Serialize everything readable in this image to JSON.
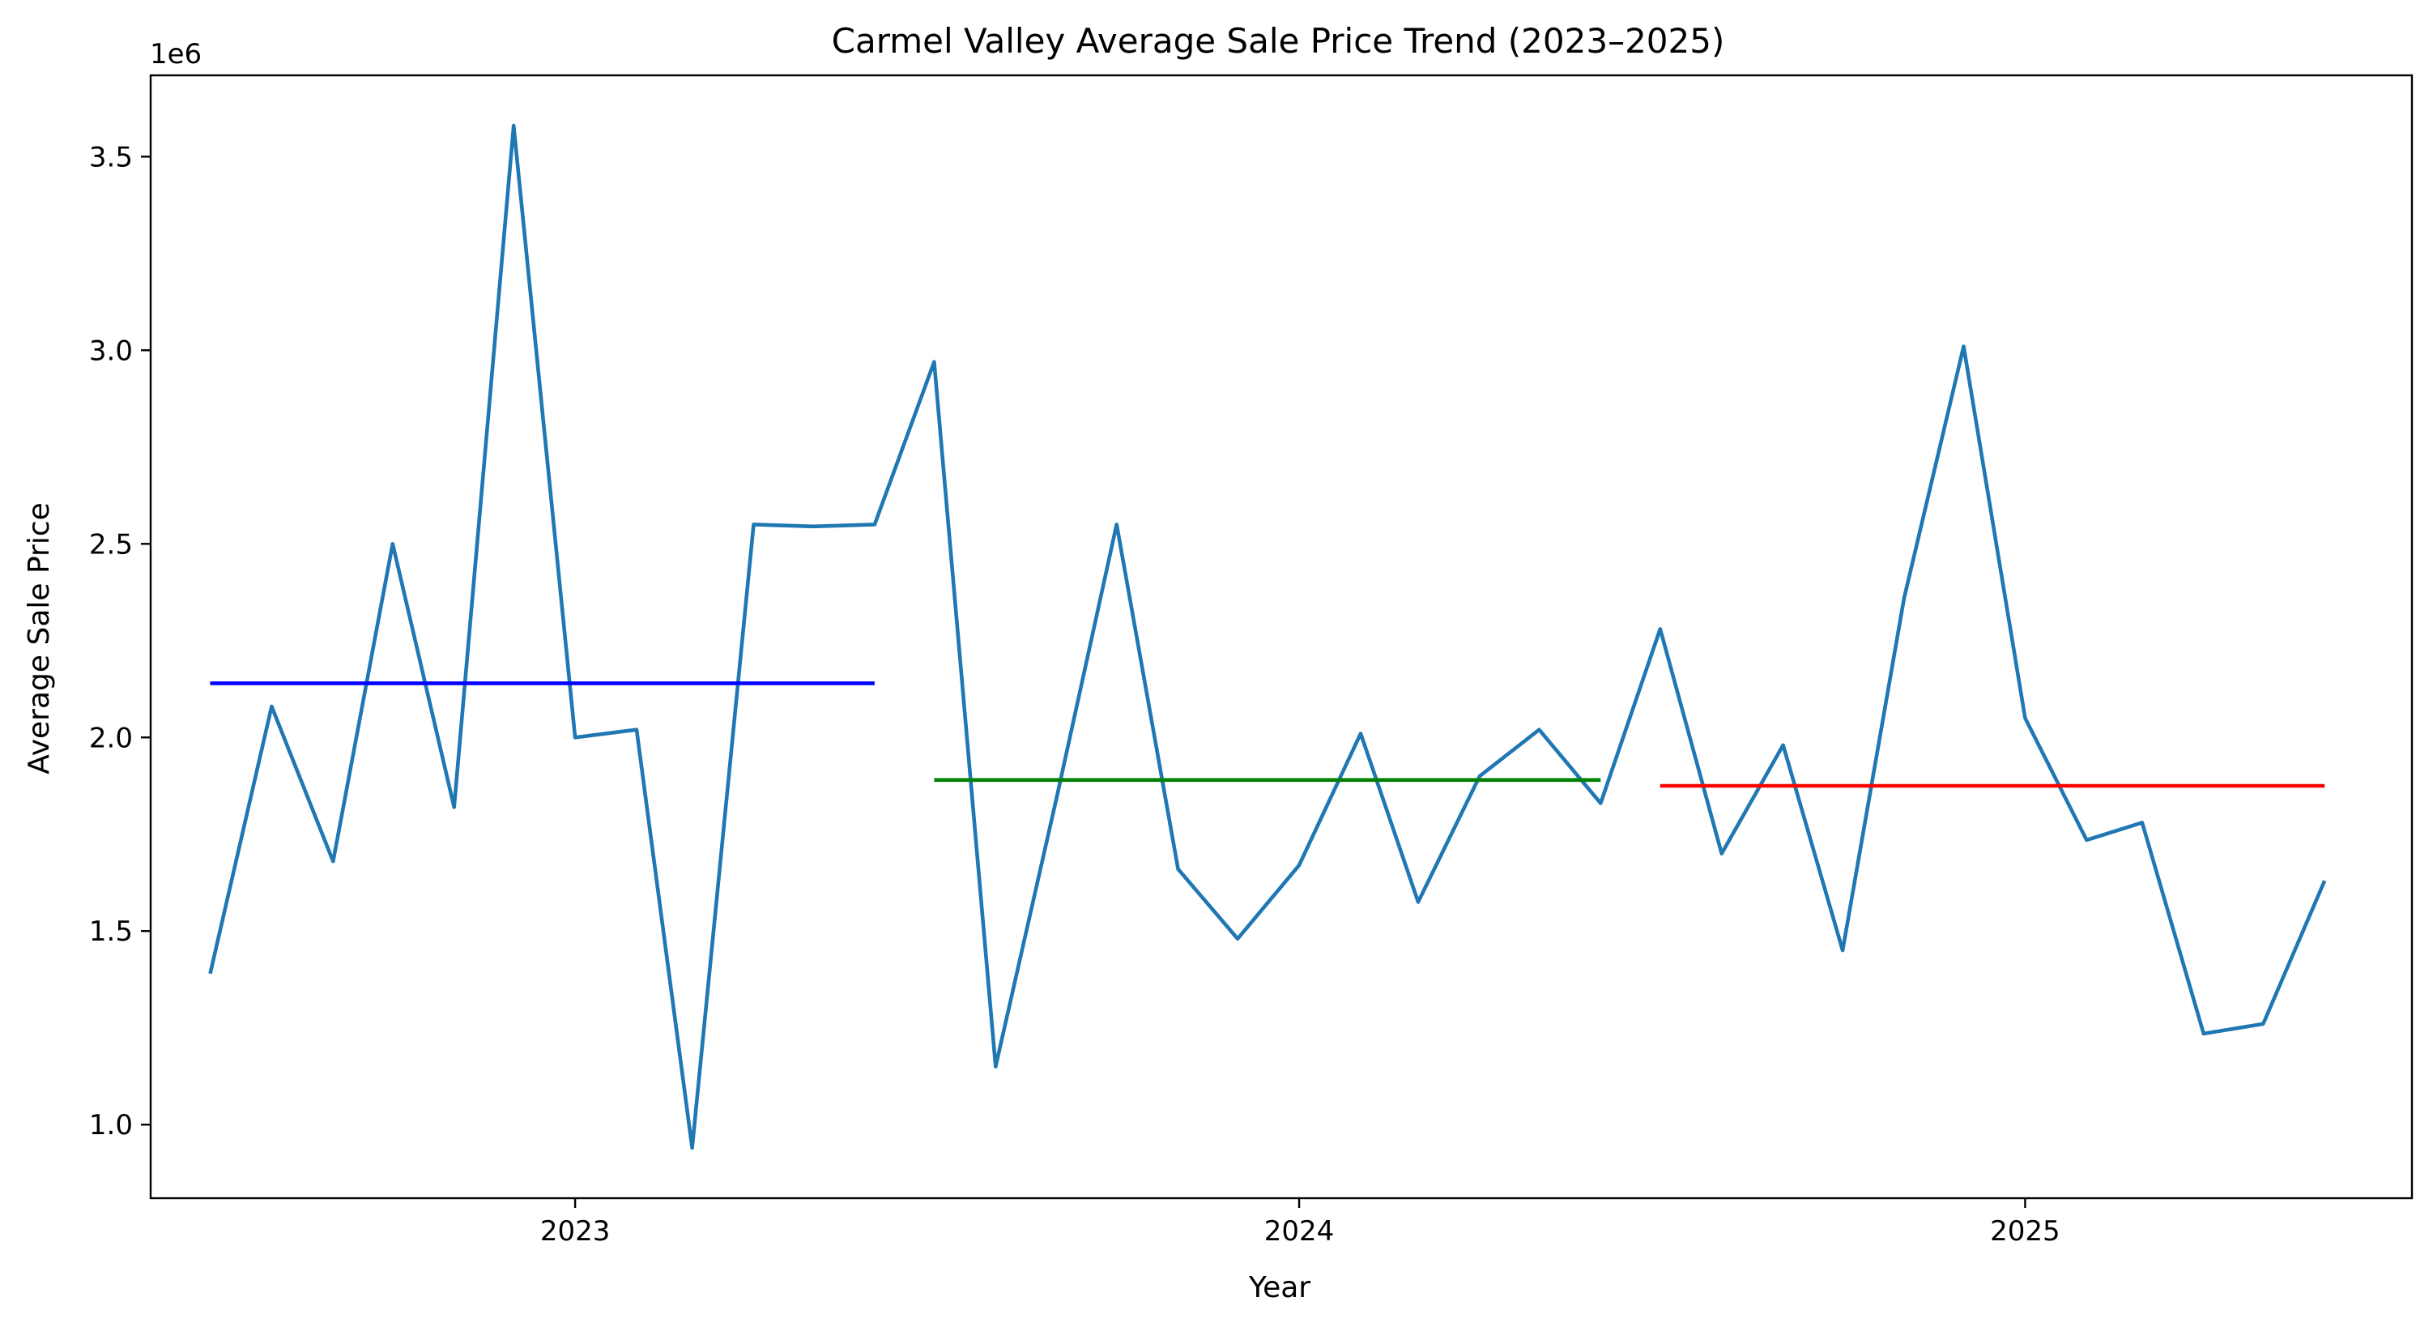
{
  "chart_data": {
    "type": "line",
    "title": "Carmel Valley Average Sale Price Trend (2023–2025)",
    "xlabel": "Year",
    "ylabel": "Average Sale Price",
    "y_offset_label": "1e6",
    "x_range": [
      "2022-06-01",
      "2025-07-15"
    ],
    "ylim": [
      0.81,
      3.71
    ],
    "grid": false,
    "x_ticks": [
      {
        "date": "2023-01-01",
        "label": "2023"
      },
      {
        "date": "2024-01-01",
        "label": "2024"
      },
      {
        "date": "2025-01-01",
        "label": "2025"
      }
    ],
    "y_ticks": [
      {
        "value": 1.0,
        "label": "1.0"
      },
      {
        "value": 1.5,
        "label": "1.5"
      },
      {
        "value": 2.0,
        "label": "2.0"
      },
      {
        "value": 2.5,
        "label": "2.5"
      },
      {
        "value": 3.0,
        "label": "3.0"
      },
      {
        "value": 3.5,
        "label": "3.5"
      }
    ],
    "series": [
      {
        "color": "#1f77b4",
        "x": [
          "2022-07-01",
          "2022-08-01",
          "2022-09-01",
          "2022-10-01",
          "2022-11-01",
          "2022-12-01",
          "2023-01-01",
          "2023-02-01",
          "2023-03-01",
          "2023-04-01",
          "2023-05-01",
          "2023-06-01",
          "2023-07-01",
          "2023-08-01",
          "2023-09-01",
          "2023-10-01",
          "2023-11-01",
          "2023-12-01",
          "2024-01-01",
          "2024-02-01",
          "2024-03-01",
          "2024-04-01",
          "2024-05-01",
          "2024-06-01",
          "2024-07-01",
          "2024-08-01",
          "2024-09-01",
          "2024-10-01",
          "2024-11-01",
          "2024-12-01",
          "2025-01-01",
          "2025-02-01",
          "2025-03-01",
          "2025-04-01",
          "2025-05-01",
          "2025-06-01"
        ],
        "y": [
          1.39,
          2.08,
          1.68,
          2.5,
          1.82,
          3.58,
          2.0,
          2.02,
          0.94,
          2.55,
          2.545,
          2.55,
          2.97,
          1.15,
          1.85,
          2.55,
          1.66,
          1.48,
          1.67,
          2.01,
          1.575,
          1.9,
          2.02,
          1.83,
          2.28,
          1.7,
          1.98,
          1.45,
          2.36,
          3.01,
          2.05,
          1.735,
          1.78,
          1.235,
          1.26,
          1.63
        ]
      },
      {
        "color": "#0000ff",
        "x": [
          "2022-07-01",
          "2023-06-01"
        ],
        "y": [
          2.14,
          2.14
        ]
      },
      {
        "color": "#008000",
        "x": [
          "2023-07-01",
          "2024-06-01"
        ],
        "y": [
          1.89,
          1.89
        ]
      },
      {
        "color": "#ff0000",
        "x": [
          "2024-07-01",
          "2025-06-01"
        ],
        "y": [
          1.875,
          1.875
        ]
      }
    ]
  }
}
